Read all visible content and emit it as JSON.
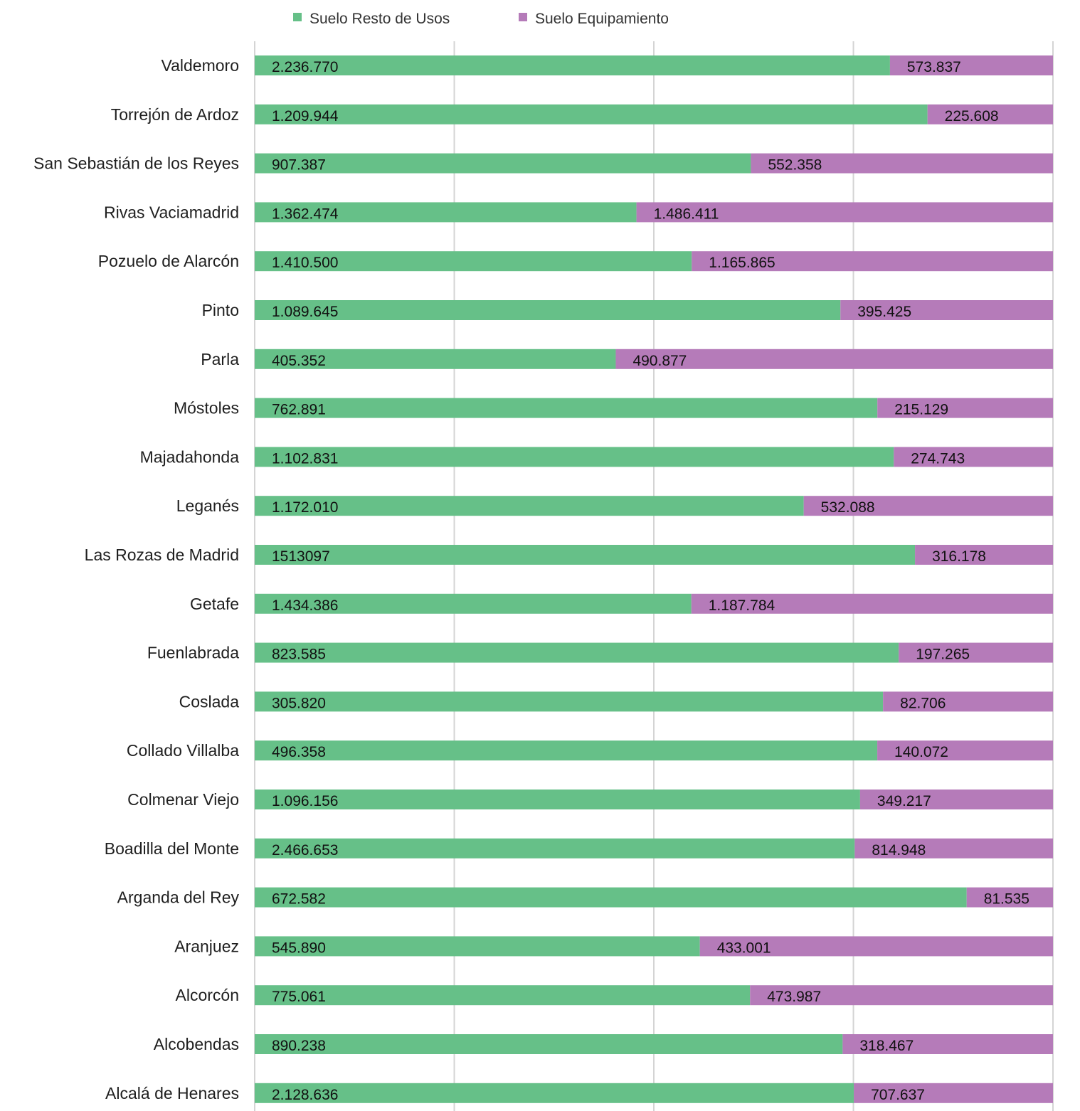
{
  "chart_data": {
    "type": "bar",
    "orientation": "horizontal",
    "stacking": "percent",
    "grid": true,
    "legend_position": "top",
    "categories": [
      "Valdemoro",
      "Torrejón de Ardoz",
      "San Sebastián de los Reyes",
      "Rivas Vaciamadrid",
      "Pozuelo de Alarcón",
      "Pinto",
      "Parla",
      "Móstoles",
      "Majadahonda",
      "Leganés",
      "Las Rozas de Madrid",
      "Getafe",
      "Fuenlabrada",
      "Coslada",
      "Collado Villalba",
      "Colmenar Viejo",
      "Boadilla del Monte",
      "Arganda del Rey",
      "Aranjuez",
      "Alcorcón",
      "Alcobendas",
      "Alcalá de Henares"
    ],
    "series": [
      {
        "name": "Suelo Resto de Usos",
        "color": "#66c088",
        "values": [
          2236770,
          1209944,
          907387,
          1362474,
          1410500,
          1089645,
          405352,
          762891,
          1102831,
          1172010,
          1513097,
          1434386,
          823585,
          305820,
          496358,
          1096156,
          2466653,
          672582,
          545890,
          775061,
          890238,
          2128636
        ],
        "labels": [
          "2.236.770",
          "1.209.944",
          "907.387",
          "1.362.474",
          "1.410.500",
          "1.089.645",
          "405.352",
          "762.891",
          "1.102.831",
          "1.172.010",
          "1513097",
          "1.434.386",
          "823.585",
          "305.820",
          "496.358",
          "1.096.156",
          "2.466.653",
          "672.582",
          "545.890",
          "775.061",
          "890.238",
          "2.128.636"
        ]
      },
      {
        "name": "Suelo Equipamiento",
        "color": "#b57bb9",
        "values": [
          573837,
          225608,
          552358,
          1486411,
          1165865,
          395425,
          490877,
          215129,
          274743,
          532088,
          316178,
          1187784,
          197265,
          82706,
          140072,
          349217,
          814948,
          81535,
          433001,
          473987,
          318467,
          707637
        ],
        "labels": [
          "573.837",
          "225.608",
          "552.358",
          "1.486.411",
          "1.165.865",
          "395.425",
          "490.877",
          "215.129",
          "274.743",
          "532.088",
          "316.178",
          "1.187.784",
          "197.265",
          "82.706",
          "140.072",
          "349.217",
          "814.948",
          "81.535",
          "433.001",
          "473.987",
          "318.467",
          "707.637"
        ]
      }
    ],
    "xlim": [
      0,
      1
    ],
    "gridline_count": 5
  }
}
